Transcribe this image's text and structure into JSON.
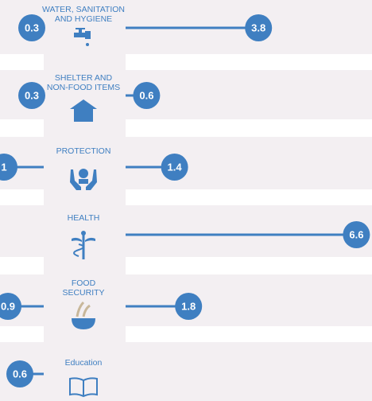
{
  "chart_data": {
    "type": "dumbbell",
    "categories": [
      "WATER, SANITATION\nAND HYGIENE",
      "SHELTER AND\nNON-FOOD ITEMS",
      "PROTECTION",
      "HEALTH",
      "FOOD\nSECURITY",
      "Education"
    ],
    "series": [
      {
        "color": "#3f7fc1",
        "values": [
          0.3,
          0.3,
          1,
          null,
          0.9,
          0.6
        ]
      },
      {
        "color": "#3f7fc1",
        "values": [
          3.8,
          0.6,
          1.4,
          6.6,
          1.8,
          null
        ]
      }
    ]
  }
}
